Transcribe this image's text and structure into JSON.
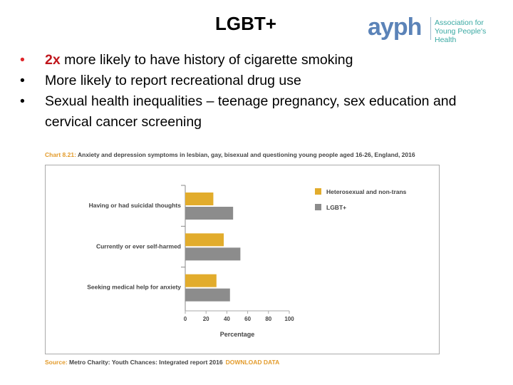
{
  "slide": {
    "title": "LGBT+"
  },
  "logo": {
    "mark": "ayph",
    "line1": "Association for",
    "line2": "Young People's Health"
  },
  "bullets": [
    {
      "highlight": "2x",
      "text": " more likely to have history of cigarette smoking"
    },
    {
      "highlight": "",
      "text": "More likely to report recreational drug use"
    },
    {
      "highlight": "",
      "text": "Sexual health inequalities – teenage pregnancy, sex education and cervical cancer screening"
    }
  ],
  "chart_caption": {
    "number": "Chart 8.21:",
    "text": " Anxiety and depression symptoms in lesbian, gay, bisexual and questioning young people aged 16-26, England, 2016"
  },
  "source": {
    "label": "Source:",
    "text": " Metro Charity: Youth Chances: Integrated report 2016",
    "link": "DOWNLOAD DATA"
  },
  "colors": {
    "series1": "#e2ac2c",
    "series2": "#8c8c8c",
    "accent": "#e39b2b",
    "bullet_red": "#c0161c"
  },
  "chart_data": {
    "type": "bar",
    "orientation": "horizontal",
    "categories": [
      "Having or had suicidal thoughts",
      "Currently or ever self-harmed",
      "Seeking medical help for anxiety"
    ],
    "series": [
      {
        "name": "Heterosexual and non-trans",
        "values": [
          27,
          37,
          30
        ]
      },
      {
        "name": "LGBT+",
        "values": [
          46,
          53,
          43
        ]
      }
    ],
    "xlabel": "Percentage",
    "xticks": [
      0,
      20,
      40,
      60,
      80,
      100
    ],
    "xlim": [
      0,
      100
    ],
    "legend": "top-right"
  }
}
